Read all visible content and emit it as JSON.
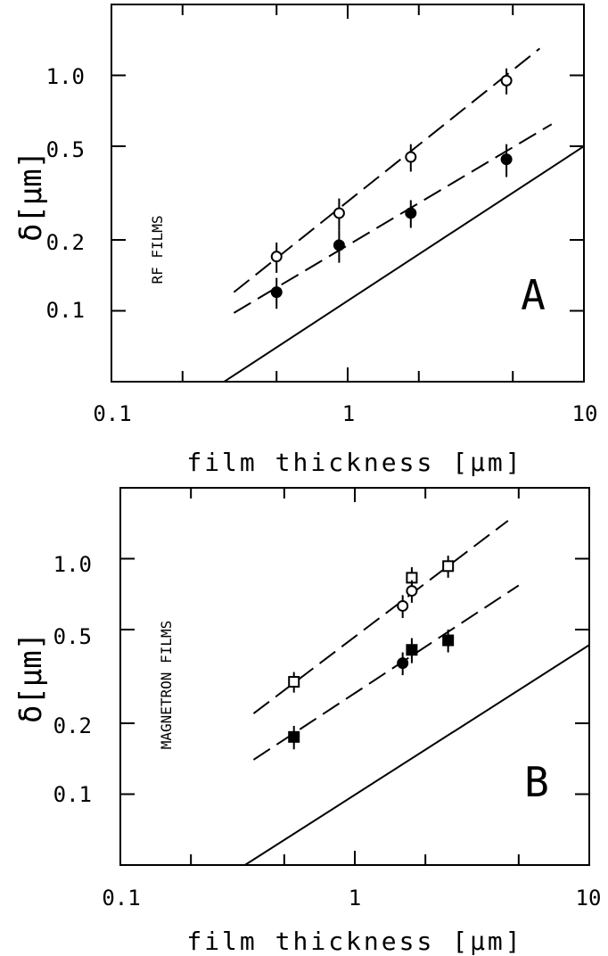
{
  "chart_data": [
    {
      "type": "scatter",
      "panel_letter": "A",
      "side_label": "RF FILMS",
      "xlabel": "film thickness [μm]",
      "ylabel": "δ[μm]",
      "xscale": "log",
      "yscale": "log",
      "xlim": [
        0.1,
        10
      ],
      "ylim": [
        0.05,
        2.0
      ],
      "x_ticks": [
        0.1,
        1,
        10
      ],
      "x_tick_labels": [
        "0.1",
        "1",
        "10"
      ],
      "y_ticks": [
        0.1,
        0.2,
        0.5,
        1.0
      ],
      "y_tick_labels": [
        "0.1",
        "0.2",
        "0.5",
        "1.0"
      ],
      "series": [
        {
          "marker": "open-circle",
          "x": [
            0.5,
            0.92,
            1.85,
            4.7
          ],
          "y": [
            0.17,
            0.26,
            0.45,
            0.95
          ],
          "yerr": [
            0.025,
            0.04,
            0.06,
            0.12
          ]
        },
        {
          "marker": "filled-circle",
          "x": [
            0.5,
            0.92,
            1.85,
            4.7
          ],
          "y": [
            0.12,
            0.19,
            0.26,
            0.44
          ],
          "yerr": [
            0.018,
            0.03,
            0.035,
            0.07
          ]
        }
      ],
      "lines": [
        {
          "style": "dashed",
          "x": [
            0.33,
            6.5
          ],
          "y": [
            0.12,
            1.3
          ]
        },
        {
          "style": "dashed",
          "x": [
            0.33,
            7.3
          ],
          "y": [
            0.098,
            0.62
          ]
        },
        {
          "style": "solid",
          "x": [
            0.3,
            10
          ],
          "y": [
            0.05,
            0.5
          ]
        }
      ],
      "grid": false,
      "legend": "none"
    },
    {
      "type": "scatter",
      "panel_letter": "B",
      "side_label": "MAGNETRON FILMS",
      "xlabel": "film thickness [μm]",
      "ylabel": "δ[μm]",
      "xscale": "log",
      "yscale": "log",
      "xlim": [
        0.1,
        10
      ],
      "ylim": [
        0.05,
        2.0
      ],
      "x_ticks": [
        0.1,
        1,
        10
      ],
      "x_tick_labels": [
        "0.1",
        "1",
        "10"
      ],
      "y_ticks": [
        0.1,
        0.2,
        0.5,
        1.0
      ],
      "y_tick_labels": [
        "0.1",
        "0.2",
        "0.5",
        "1.0"
      ],
      "series": [
        {
          "marker": "open-square",
          "x": [
            0.55,
            1.75,
            2.5
          ],
          "y": [
            0.3,
            0.83,
            0.93
          ],
          "yerr": [
            0.03,
            0.09,
            0.1
          ]
        },
        {
          "marker": "open-circle",
          "x": [
            1.6,
            1.75
          ],
          "y": [
            0.63,
            0.73
          ],
          "yerr": [
            0.07,
            0.08
          ]
        },
        {
          "marker": "filled-square",
          "x": [
            0.55,
            1.75,
            2.5
          ],
          "y": [
            0.175,
            0.41,
            0.45
          ],
          "yerr": [
            0.02,
            0.05,
            0.05
          ]
        },
        {
          "marker": "filled-circle",
          "x": [
            1.6
          ],
          "y": [
            0.36
          ],
          "yerr": [
            0.04
          ]
        }
      ],
      "lines": [
        {
          "style": "dashed",
          "x": [
            0.37,
            4.5
          ],
          "y": [
            0.22,
            1.45
          ]
        },
        {
          "style": "dashed",
          "x": [
            0.37,
            5.0
          ],
          "y": [
            0.14,
            0.77
          ]
        },
        {
          "style": "solid",
          "x": [
            0.34,
            10
          ],
          "y": [
            0.05,
            0.43
          ]
        }
      ],
      "grid": false,
      "legend": "none"
    }
  ]
}
